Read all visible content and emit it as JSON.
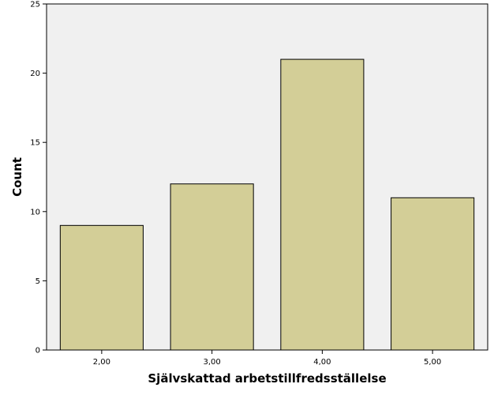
{
  "chart_data": {
    "type": "bar",
    "title": "",
    "xlabel": "Självskattad arbetstillfredsställelse",
    "ylabel": "Count",
    "categories": [
      "2,00",
      "3,00",
      "4,00",
      "5,00"
    ],
    "values": [
      9,
      12,
      21,
      11
    ],
    "ylim": [
      0,
      25
    ],
    "yticks": [
      "0",
      "5",
      "10",
      "15",
      "20",
      "25"
    ],
    "grid": false,
    "legend": "none",
    "colors": {
      "plot_background": "#f0f0f0",
      "bar_fill": "#d3ce97",
      "bar_stroke": "#000000",
      "axis": "#000000"
    }
  }
}
